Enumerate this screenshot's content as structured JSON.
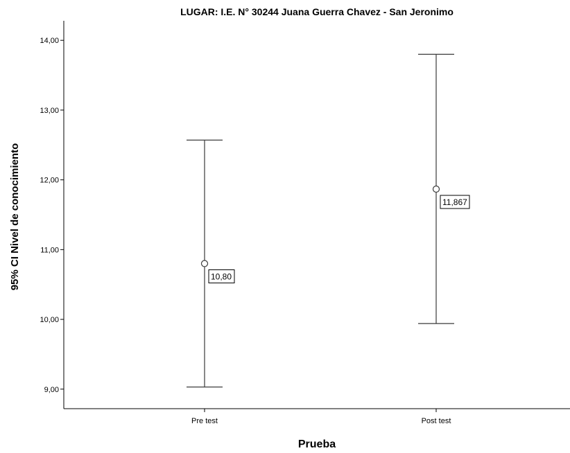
{
  "chart_data": {
    "type": "errorbar",
    "title": "LUGAR: I.E. N° 30244 Juana Guerra Chavez - San Jeronimo",
    "xlabel": "Prueba",
    "ylabel": "95% CI Nivel de conocimiento",
    "categories": [
      "Pre test",
      "Post test"
    ],
    "means": [
      10.8,
      11.867
    ],
    "lower": [
      9.03,
      9.94
    ],
    "upper": [
      12.57,
      13.8
    ],
    "data_labels": [
      "10,80",
      "11,867"
    ],
    "ylim": [
      8.72,
      14.28
    ],
    "yticks": [
      9,
      10,
      11,
      12,
      13,
      14
    ],
    "ytick_labels": [
      "9,00",
      "10,00",
      "11,00",
      "12,00",
      "13,00",
      "14,00"
    ],
    "grid": false,
    "line_color": "#3a3a3a"
  }
}
